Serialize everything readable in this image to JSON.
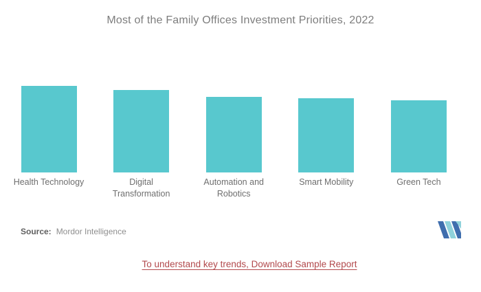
{
  "page": {
    "background": "#ffffff"
  },
  "header": {
    "title": "Most of the Family Offices Investment Priorities, 2022"
  },
  "chart_data": {
    "type": "bar",
    "title": "Most of the Family Offices Investment Priorities, 2022",
    "categories": [
      "Health Technology",
      "Digital Transformation",
      "Automation and Robotics",
      "Smart Mobility",
      "Green Tech"
    ],
    "values": [
      100,
      95,
      87,
      86,
      83
    ],
    "values_note": "relative bar heights as percent of tallest bar; chart displays no numeric axis, gridlines or data labels",
    "label_lines": [
      [
        "Health Technology"
      ],
      [
        "Digital",
        "Transformation"
      ],
      [
        "Automation and",
        "Robotics"
      ],
      [
        "Smart Mobility"
      ],
      [
        "Green Tech"
      ]
    ],
    "bar_color": "#58C8CE",
    "xlabel": "",
    "ylabel": "",
    "axis_shown": false,
    "legend_shown": false
  },
  "source": {
    "label": "Source:",
    "text": "Mordor Intelligence"
  },
  "footer": {
    "link_text": "To understand key trends, Download Sample Report",
    "link_color": "#B2494C"
  },
  "logo": {
    "name": "mordor-intelligence-logo",
    "color_teal": "#8FD2DB",
    "color_blue": "#3F6EAE"
  },
  "colors": {
    "title_text": "#7D7D7D",
    "label_text": "#6E6E6E",
    "source_label": "#606060",
    "source_text": "#8E8E8E",
    "bar": "#58C8CE"
  }
}
